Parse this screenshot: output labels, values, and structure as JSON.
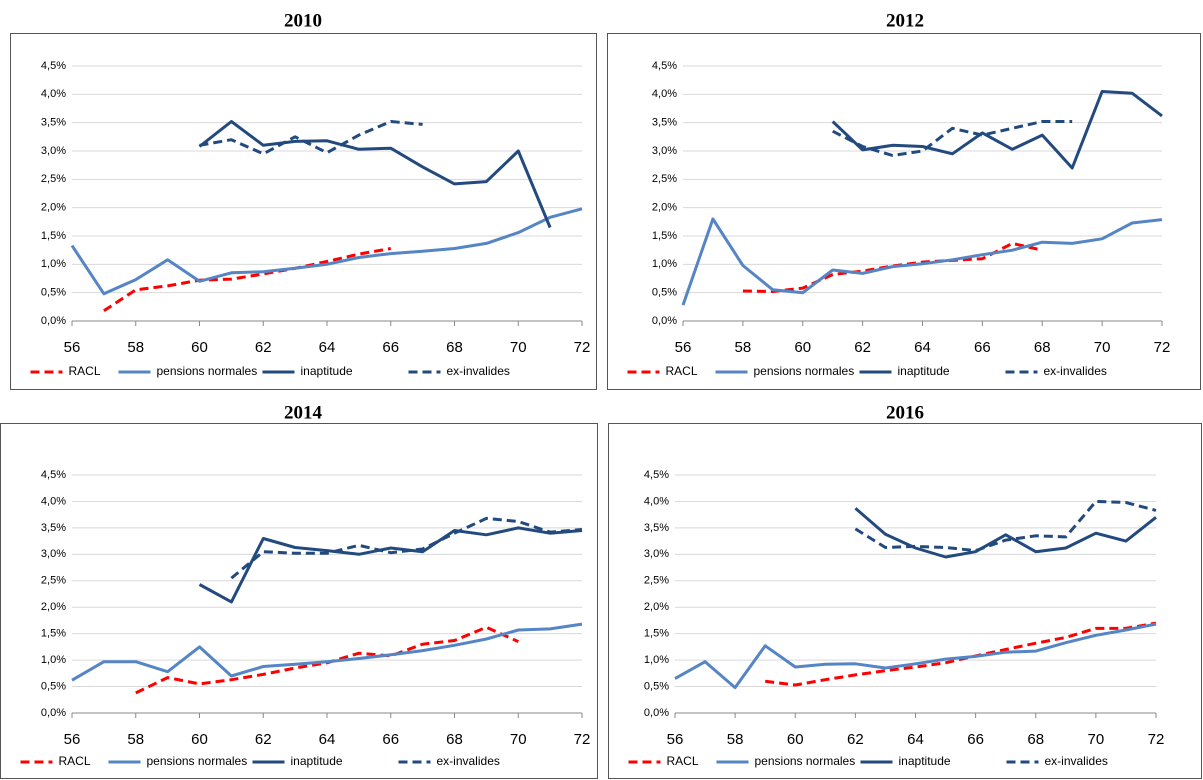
{
  "chart_data": [
    {
      "type": "line",
      "title": "2010",
      "x": [
        56,
        57,
        58,
        59,
        60,
        61,
        62,
        63,
        64,
        65,
        66,
        67,
        68,
        69,
        70,
        71,
        72
      ],
      "xlim": [
        56,
        72
      ],
      "xticks": [
        56,
        58,
        60,
        62,
        64,
        66,
        68,
        70,
        72
      ],
      "ylim": [
        0,
        4.5
      ],
      "yticks": [
        {
          "value": 0,
          "label": "0,0%"
        },
        {
          "value": 0.5,
          "label": "0,5%"
        },
        {
          "value": 1,
          "label": "1,0%"
        },
        {
          "value": 1.5,
          "label": "1,5%"
        },
        {
          "value": 2,
          "label": "2,0%"
        },
        {
          "value": 2.5,
          "label": "2,5%"
        },
        {
          "value": 3,
          "label": "3,0%"
        },
        {
          "value": 3.5,
          "label": "3,5%"
        },
        {
          "value": 4,
          "label": "4,0%"
        },
        {
          "value": 4.5,
          "label": "4,5%"
        }
      ],
      "grid": true,
      "series": [
        {
          "name": "RACL",
          "color": "#ff0000",
          "dashed": true,
          "values": [
            null,
            0.18,
            0.55,
            0.62,
            0.72,
            0.74,
            0.83,
            0.93,
            1.05,
            1.18,
            1.28,
            null,
            null,
            null,
            null,
            null,
            null
          ]
        },
        {
          "name": "pensions normales",
          "color": "#5585c5",
          "dashed": false,
          "values": [
            1.33,
            0.48,
            0.73,
            1.08,
            0.7,
            0.85,
            0.87,
            0.93,
            1.0,
            1.12,
            1.19,
            1.23,
            1.28,
            1.37,
            1.56,
            1.83,
            1.98
          ]
        },
        {
          "name": "inaptitude",
          "color": "#234a7e",
          "dashed": false,
          "values": [
            null,
            null,
            null,
            null,
            3.08,
            3.52,
            3.1,
            3.17,
            3.18,
            3.03,
            3.05,
            2.72,
            2.42,
            2.46,
            3.0,
            1.65,
            null
          ]
        },
        {
          "name": "ex-invalides",
          "color": "#234a7e",
          "dashed": true,
          "values": [
            null,
            null,
            null,
            null,
            3.1,
            3.2,
            2.95,
            3.25,
            2.97,
            3.28,
            3.52,
            3.47,
            null,
            null,
            null,
            null,
            null
          ]
        }
      ]
    },
    {
      "type": "line",
      "title": "2012",
      "x": [
        56,
        57,
        58,
        59,
        60,
        61,
        62,
        63,
        64,
        65,
        66,
        67,
        68,
        69,
        70,
        71,
        72
      ],
      "xlim": [
        56,
        72
      ],
      "xticks": [
        56,
        58,
        60,
        62,
        64,
        66,
        68,
        70,
        72
      ],
      "ylim": [
        0,
        4.5
      ],
      "yticks": [
        {
          "value": 0,
          "label": "0,0%"
        },
        {
          "value": 0.5,
          "label": "0,5%"
        },
        {
          "value": 1,
          "label": "1,0%"
        },
        {
          "value": 1.5,
          "label": "1,5%"
        },
        {
          "value": 2,
          "label": "2,0%"
        },
        {
          "value": 2.5,
          "label": "2,5%"
        },
        {
          "value": 3,
          "label": "3,0%"
        },
        {
          "value": 3.5,
          "label": "3,5%"
        },
        {
          "value": 4,
          "label": "4,0%"
        },
        {
          "value": 4.5,
          "label": "4,5%"
        }
      ],
      "grid": true,
      "series": [
        {
          "name": "RACL",
          "color": "#ff0000",
          "dashed": true,
          "values": [
            null,
            null,
            0.53,
            0.52,
            0.58,
            0.82,
            0.88,
            0.97,
            1.04,
            1.07,
            1.1,
            1.37,
            1.25,
            null,
            null,
            null,
            null
          ]
        },
        {
          "name": "pensions normales",
          "color": "#5585c5",
          "dashed": false,
          "values": [
            0.28,
            1.8,
            0.98,
            0.55,
            0.5,
            0.9,
            0.84,
            0.96,
            1.01,
            1.08,
            1.17,
            1.25,
            1.39,
            1.37,
            1.45,
            1.73,
            1.79
          ]
        },
        {
          "name": "inaptitude",
          "color": "#234a7e",
          "dashed": false,
          "values": [
            null,
            null,
            null,
            null,
            null,
            3.52,
            3.02,
            3.1,
            3.08,
            2.95,
            3.32,
            3.03,
            3.28,
            2.7,
            4.05,
            4.02,
            3.62
          ]
        },
        {
          "name": "ex-invalides",
          "color": "#234a7e",
          "dashed": true,
          "values": [
            null,
            null,
            null,
            null,
            null,
            3.35,
            3.08,
            2.92,
            3.0,
            3.4,
            3.28,
            3.4,
            3.52,
            3.52,
            null,
            null,
            null
          ]
        }
      ]
    },
    {
      "type": "line",
      "title": "2014",
      "x": [
        56,
        57,
        58,
        59,
        60,
        61,
        62,
        63,
        64,
        65,
        66,
        67,
        68,
        69,
        70,
        71,
        72
      ],
      "xlim": [
        56,
        72
      ],
      "xticks": [
        56,
        58,
        60,
        62,
        64,
        66,
        68,
        70,
        72
      ],
      "ylim": [
        0,
        4.5
      ],
      "yticks": [
        {
          "value": 0,
          "label": "0,0%"
        },
        {
          "value": 0.5,
          "label": "0,5%"
        },
        {
          "value": 1,
          "label": "1,0%"
        },
        {
          "value": 1.5,
          "label": "1,5%"
        },
        {
          "value": 2,
          "label": "2,0%"
        },
        {
          "value": 2.5,
          "label": "2,5%"
        },
        {
          "value": 3,
          "label": "3,0%"
        },
        {
          "value": 3.5,
          "label": "3,5%"
        },
        {
          "value": 4,
          "label": "4,0%"
        },
        {
          "value": 4.5,
          "label": "4,5%"
        }
      ],
      "grid": true,
      "series": [
        {
          "name": "RACL",
          "color": "#ff0000",
          "dashed": true,
          "values": [
            null,
            null,
            0.38,
            0.67,
            0.55,
            0.63,
            0.73,
            0.85,
            0.95,
            1.13,
            1.08,
            1.3,
            1.37,
            1.62,
            1.35,
            null,
            null
          ]
        },
        {
          "name": "pensions normales",
          "color": "#5585c5",
          "dashed": false,
          "values": [
            0.62,
            0.97,
            0.97,
            0.78,
            1.25,
            0.7,
            0.88,
            0.92,
            0.97,
            1.03,
            1.1,
            1.18,
            1.28,
            1.4,
            1.57,
            1.59,
            1.68
          ]
        },
        {
          "name": "inaptitude",
          "color": "#234a7e",
          "dashed": false,
          "values": [
            null,
            null,
            null,
            null,
            2.43,
            2.1,
            3.3,
            3.13,
            3.07,
            3.0,
            3.12,
            3.05,
            3.45,
            3.37,
            3.5,
            3.4,
            3.45
          ]
        },
        {
          "name": "ex-invalides",
          "color": "#234a7e",
          "dashed": true,
          "values": [
            null,
            null,
            null,
            null,
            null,
            2.55,
            3.05,
            3.02,
            3.02,
            3.17,
            3.03,
            3.1,
            3.4,
            3.68,
            3.62,
            3.42,
            3.47
          ]
        }
      ]
    },
    {
      "type": "line",
      "title": "2016",
      "x": [
        56,
        57,
        58,
        59,
        60,
        61,
        62,
        63,
        64,
        65,
        66,
        67,
        68,
        69,
        70,
        71,
        72
      ],
      "xlim": [
        56,
        72
      ],
      "xticks": [
        56,
        58,
        60,
        62,
        64,
        66,
        68,
        70,
        72
      ],
      "ylim": [
        0,
        4.5
      ],
      "yticks": [
        {
          "value": 0,
          "label": "0,0%"
        },
        {
          "value": 0.5,
          "label": "0,5%"
        },
        {
          "value": 1,
          "label": "1,0%"
        },
        {
          "value": 1.5,
          "label": "1,5%"
        },
        {
          "value": 2,
          "label": "2,0%"
        },
        {
          "value": 2.5,
          "label": "2,5%"
        },
        {
          "value": 3,
          "label": "3,0%"
        },
        {
          "value": 3.5,
          "label": "3,5%"
        },
        {
          "value": 4,
          "label": "4,0%"
        },
        {
          "value": 4.5,
          "label": "4,5%"
        }
      ],
      "grid": true,
      "series": [
        {
          "name": "RACL",
          "color": "#ff0000",
          "dashed": true,
          "values": [
            null,
            null,
            null,
            0.6,
            0.53,
            0.63,
            0.72,
            0.8,
            0.87,
            0.95,
            1.08,
            1.2,
            1.32,
            1.43,
            1.6,
            1.6,
            1.7
          ]
        },
        {
          "name": "pensions normales",
          "color": "#5585c5",
          "dashed": false,
          "values": [
            0.65,
            0.97,
            0.48,
            1.27,
            0.87,
            0.92,
            0.93,
            0.85,
            0.93,
            1.02,
            1.07,
            1.15,
            1.17,
            1.33,
            1.47,
            1.57,
            1.68
          ]
        },
        {
          "name": "inaptitude",
          "color": "#234a7e",
          "dashed": false,
          "values": [
            null,
            null,
            null,
            null,
            null,
            null,
            3.87,
            3.38,
            3.12,
            2.95,
            3.05,
            3.37,
            3.05,
            3.12,
            3.4,
            3.25,
            3.7
          ]
        },
        {
          "name": "ex-invalides",
          "color": "#234a7e",
          "dashed": true,
          "values": [
            null,
            null,
            null,
            null,
            null,
            null,
            3.48,
            3.13,
            3.15,
            3.13,
            3.07,
            3.27,
            3.35,
            3.33,
            4.0,
            3.98,
            3.83
          ]
        }
      ]
    }
  ]
}
